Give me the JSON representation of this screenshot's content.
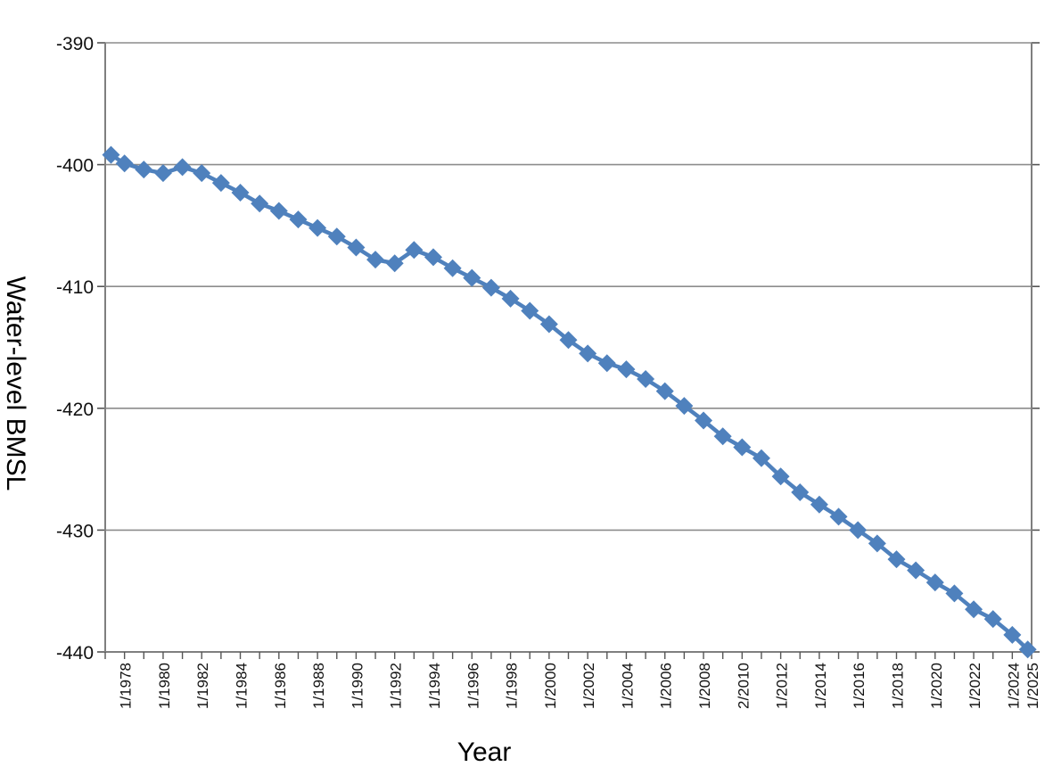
{
  "chart_data": {
    "type": "line",
    "title": "",
    "xlabel": "Year",
    "ylabel": "Water-level BMSL",
    "ylim": [
      -440,
      -390
    ],
    "xlim": [
      1977.0,
      2025.0
    ],
    "y_ticks": [
      "-390",
      "-400",
      "-410",
      "-420",
      "-430",
      "-440"
    ],
    "x_tick_labels": [
      "1/1978",
      "1/1980",
      "1/1982",
      "1/1984",
      "1/1986",
      "1/1988",
      "1/1990",
      "1/1992",
      "1/1994",
      "1/1996",
      "1/1998",
      "1/2000",
      "1/2002",
      "1/2004",
      "1/2006",
      "1/2008",
      "2/2010",
      "1/2012",
      "1/2014",
      "1/2016",
      "1/2018",
      "1/2020",
      "1/2022",
      "1/2024",
      "1/2025"
    ],
    "x_tick_values": [
      1978,
      1980,
      1982,
      1984,
      1986,
      1988,
      1990,
      1992,
      1994,
      1996,
      1998,
      2000,
      2002,
      2004,
      2006,
      2008,
      2010,
      2012,
      2014,
      2016,
      2018,
      2020,
      2022,
      2024,
      2025
    ],
    "grid": true,
    "color": "#4f81bd",
    "marker": "diamond",
    "series": [
      {
        "x": [
          1977.3,
          1978.0,
          1979.0,
          1980.0,
          1981.0,
          1982.0,
          1983.0,
          1984.0,
          1985.0,
          1986.0,
          1987.0,
          1988.0,
          1989.0,
          1990.0,
          1991.0,
          1992.0,
          1993.0,
          1994.0,
          1995.0,
          1996.0,
          1997.0,
          1998.0,
          1999.0,
          2000.0,
          2001.0,
          2002.0,
          2003.0,
          2004.0,
          2005.0,
          2006.0,
          2007.0,
          2008.0,
          2009.0,
          2010.0,
          2011.0,
          2012.0,
          2013.0,
          2014.0,
          2015.0,
          2016.0,
          2017.0,
          2018.0,
          2019.0,
          2020.0,
          2021.0,
          2022.0,
          2023.0,
          2024.0,
          2024.8
        ],
        "y": [
          -399.2,
          -399.9,
          -400.4,
          -400.7,
          -400.2,
          -400.7,
          -401.5,
          -402.3,
          -403.2,
          -403.8,
          -404.5,
          -405.2,
          -405.9,
          -406.8,
          -407.8,
          -408.1,
          -407.0,
          -407.6,
          -408.5,
          -409.3,
          -410.1,
          -411.0,
          -412.0,
          -413.1,
          -414.4,
          -415.5,
          -416.3,
          -416.8,
          -417.6,
          -418.6,
          -419.8,
          -421.0,
          -422.3,
          -423.2,
          -424.1,
          -425.6,
          -426.9,
          -427.9,
          -428.9,
          -430.0,
          -431.1,
          -432.4,
          -433.3,
          -434.3,
          -435.2,
          -436.5,
          -437.3,
          -438.6,
          -439.8
        ]
      }
    ]
  }
}
